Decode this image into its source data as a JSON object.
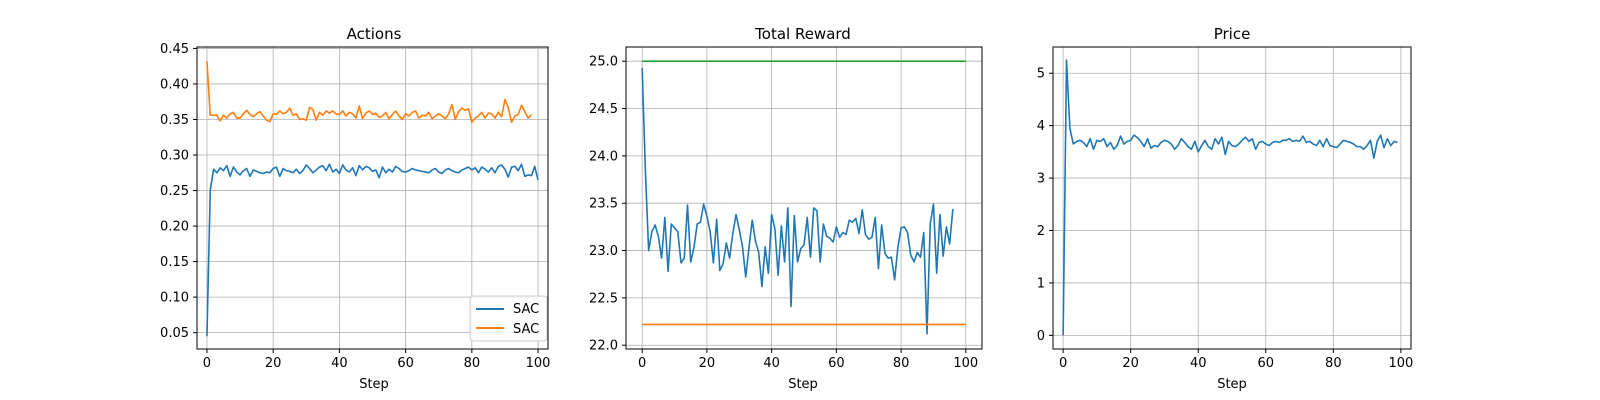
{
  "colors": {
    "blue": "#1f77b4",
    "orange": "#ff7f0e",
    "green": "#2ca02c",
    "grid": "#b0b0b0",
    "axis": "#000000"
  },
  "chart_data": [
    {
      "type": "line",
      "title": "Actions",
      "xlabel": "Step",
      "ylabel": "",
      "xlim": [
        -3,
        103
      ],
      "ylim": [
        0.027,
        0.452
      ],
      "xticks": [
        0,
        20,
        40,
        60,
        80,
        100
      ],
      "yticks": [
        0.05,
        0.1,
        0.15,
        0.2,
        0.25,
        0.3,
        0.35,
        0.4,
        0.45
      ],
      "ytick_labels": [
        "0.05",
        "0.10",
        "0.15",
        "0.20",
        "0.25",
        "0.30",
        "0.35",
        "0.40",
        "0.45"
      ],
      "grid": true,
      "legend": "lower-right",
      "series": [
        {
          "name": "SAC",
          "color": "#1f77b4",
          "values": [
            0.045,
            0.25,
            0.28,
            0.275,
            0.282,
            0.278,
            0.285,
            0.27,
            0.283,
            0.276,
            0.272,
            0.278,
            0.281,
            0.27,
            0.279,
            0.277,
            0.275,
            0.274,
            0.276,
            0.275,
            0.281,
            0.283,
            0.27,
            0.281,
            0.278,
            0.277,
            0.275,
            0.28,
            0.274,
            0.278,
            0.286,
            0.281,
            0.275,
            0.279,
            0.283,
            0.285,
            0.278,
            0.287,
            0.276,
            0.28,
            0.274,
            0.286,
            0.279,
            0.276,
            0.282,
            0.271,
            0.285,
            0.279,
            0.284,
            0.282,
            0.277,
            0.279,
            0.268,
            0.283,
            0.275,
            0.28,
            0.276,
            0.284,
            0.281,
            0.277,
            0.276,
            0.278,
            0.281,
            0.279,
            0.278,
            0.277,
            0.276,
            0.275,
            0.279,
            0.281,
            0.276,
            0.274,
            0.279,
            0.281,
            0.278,
            0.276,
            0.275,
            0.279,
            0.281,
            0.283,
            0.279,
            0.282,
            0.275,
            0.283,
            0.28,
            0.276,
            0.282,
            0.275,
            0.284,
            0.286,
            0.28,
            0.269,
            0.283,
            0.284,
            0.278,
            0.287,
            0.27,
            0.272,
            0.271,
            0.284,
            0.265
          ]
        },
        {
          "name": "SAC",
          "color": "#ff7f0e",
          "values": [
            0.432,
            0.356,
            0.356,
            0.356,
            0.348,
            0.356,
            0.352,
            0.358,
            0.36,
            0.352,
            0.352,
            0.358,
            0.363,
            0.357,
            0.354,
            0.358,
            0.361,
            0.355,
            0.349,
            0.347,
            0.358,
            0.357,
            0.362,
            0.358,
            0.36,
            0.366,
            0.356,
            0.358,
            0.35,
            0.351,
            0.349,
            0.367,
            0.364,
            0.349,
            0.36,
            0.356,
            0.362,
            0.359,
            0.362,
            0.358,
            0.357,
            0.362,
            0.355,
            0.36,
            0.358,
            0.352,
            0.369,
            0.351,
            0.359,
            0.362,
            0.357,
            0.359,
            0.353,
            0.355,
            0.36,
            0.351,
            0.357,
            0.362,
            0.355,
            0.35,
            0.358,
            0.355,
            0.36,
            0.362,
            0.352,
            0.356,
            0.355,
            0.36,
            0.351,
            0.355,
            0.358,
            0.355,
            0.351,
            0.358,
            0.371,
            0.35,
            0.361,
            0.366,
            0.363,
            0.365,
            0.346,
            0.352,
            0.355,
            0.36,
            0.352,
            0.359,
            0.358,
            0.352,
            0.36,
            0.354,
            0.378,
            0.367,
            0.346,
            0.355,
            0.357,
            0.37,
            0.361,
            0.352,
            0.357
          ]
        }
      ]
    },
    {
      "type": "line",
      "title": "Total Reward",
      "xlabel": "Step",
      "ylabel": "",
      "xlim": [
        -5,
        105
      ],
      "ylim": [
        21.96,
        25.15
      ],
      "xticks": [
        0,
        20,
        40,
        60,
        80,
        100
      ],
      "yticks": [
        22.0,
        22.5,
        23.0,
        23.5,
        24.0,
        24.5,
        25.0
      ],
      "ytick_labels": [
        "22.0",
        "22.5",
        "23.0",
        "23.5",
        "24.0",
        "24.5",
        "25.0"
      ],
      "grid": true,
      "legend": "none",
      "series": [
        {
          "color": "#1f77b4",
          "values": [
            24.93,
            23.83,
            23.0,
            23.2,
            23.27,
            23.15,
            22.92,
            23.35,
            22.78,
            23.28,
            23.24,
            23.2,
            22.87,
            22.92,
            23.48,
            22.88,
            23.03,
            23.28,
            23.3,
            23.49,
            23.36,
            23.2,
            22.87,
            23.33,
            22.79,
            22.86,
            23.08,
            22.92,
            23.18,
            23.38,
            23.22,
            23.04,
            22.72,
            23.03,
            23.32,
            23.1,
            22.98,
            22.62,
            23.04,
            22.76,
            23.38,
            23.23,
            22.74,
            23.26,
            22.88,
            23.45,
            22.41,
            23.37,
            22.88,
            23.02,
            23.06,
            23.35,
            22.93,
            23.45,
            23.42,
            22.88,
            23.28,
            23.15,
            23.13,
            23.09,
            23.25,
            23.14,
            23.19,
            23.17,
            23.32,
            23.3,
            23.34,
            23.18,
            23.43,
            23.17,
            23.12,
            23.14,
            23.35,
            22.81,
            23.27,
            22.97,
            22.92,
            22.93,
            22.69,
            23.03,
            23.24,
            23.25,
            23.19,
            22.95,
            22.88,
            22.98,
            22.93,
            23.19,
            22.12,
            23.28,
            23.49,
            22.76,
            23.38,
            22.94,
            23.25,
            23.07,
            23.44
          ]
        },
        {
          "color": "#2ca02c",
          "values": [
            25.0,
            25.0
          ]
        },
        {
          "color": "#ff7f0e",
          "values": [
            22.22,
            22.22
          ]
        }
      ]
    },
    {
      "type": "line",
      "title": "Price",
      "xlabel": "Step",
      "ylabel": "",
      "xlim": [
        -3,
        103
      ],
      "ylim": [
        -0.26,
        5.5
      ],
      "xticks": [
        0,
        20,
        40,
        60,
        80,
        100
      ],
      "yticks": [
        0,
        1,
        2,
        3,
        4,
        5
      ],
      "ytick_labels": [
        "0",
        "1",
        "2",
        "3",
        "4",
        "5"
      ],
      "grid": true,
      "legend": "none",
      "series": [
        {
          "color": "#1f77b4",
          "values": [
            0.0,
            5.25,
            3.95,
            3.65,
            3.7,
            3.72,
            3.68,
            3.6,
            3.75,
            3.55,
            3.72,
            3.7,
            3.75,
            3.6,
            3.68,
            3.55,
            3.62,
            3.8,
            3.65,
            3.7,
            3.72,
            3.82,
            3.77,
            3.7,
            3.6,
            3.75,
            3.57,
            3.62,
            3.6,
            3.68,
            3.72,
            3.7,
            3.65,
            3.55,
            3.62,
            3.75,
            3.68,
            3.6,
            3.55,
            3.7,
            3.5,
            3.62,
            3.72,
            3.6,
            3.55,
            3.75,
            3.65,
            3.78,
            3.45,
            3.7,
            3.62,
            3.6,
            3.65,
            3.72,
            3.78,
            3.7,
            3.75,
            3.55,
            3.68,
            3.7,
            3.65,
            3.62,
            3.68,
            3.7,
            3.68,
            3.72,
            3.72,
            3.75,
            3.7,
            3.72,
            3.7,
            3.8,
            3.68,
            3.7,
            3.65,
            3.62,
            3.72,
            3.6,
            3.75,
            3.62,
            3.6,
            3.58,
            3.65,
            3.72,
            3.7,
            3.68,
            3.65,
            3.6,
            3.6,
            3.55,
            3.62,
            3.72,
            3.38,
            3.7,
            3.82,
            3.58,
            3.75,
            3.62,
            3.7,
            3.68
          ]
        }
      ]
    }
  ]
}
